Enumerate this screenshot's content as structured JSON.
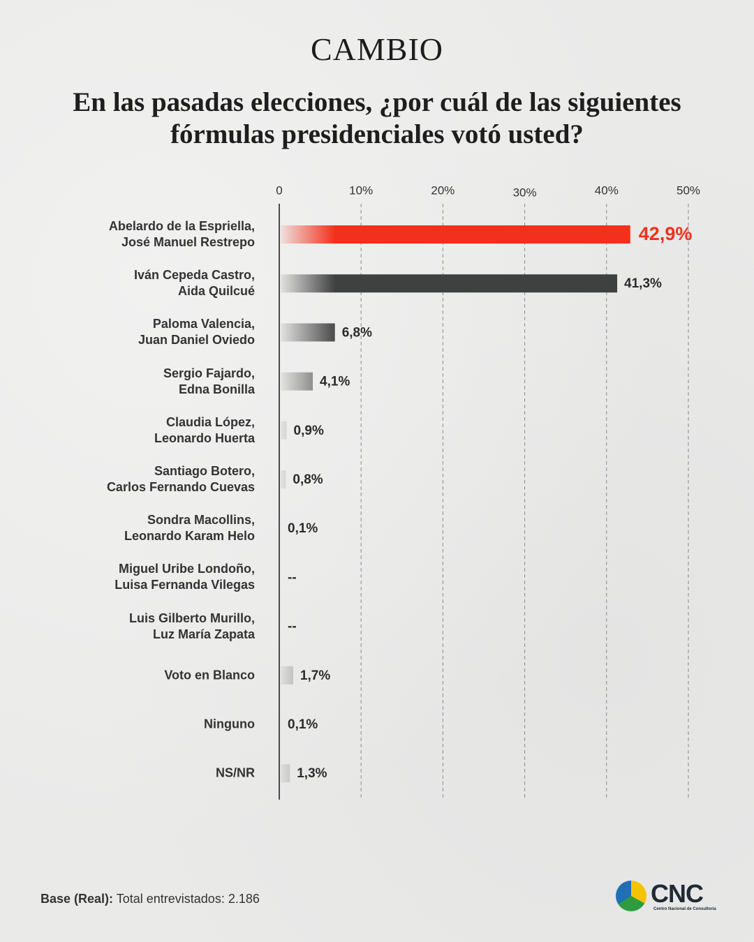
{
  "brand": "CAMBIO",
  "chart_data": {
    "type": "bar",
    "orientation": "horizontal",
    "title": "En las pasadas elecciones, ¿por cuál de las siguientes fórmulas presidenciales votó usted?",
    "categories": [
      "Abelardo de la Espriella,\nJosé Manuel Restrepo",
      "Iván Cepeda Castro,\nAida Quilcué",
      "Paloma Valencia,\nJuan Daniel Oviedo",
      "Sergio Fajardo,\nEdna Bonilla",
      "Claudia López,\nLeonardo Huerta",
      "Santiago Botero,\nCarlos Fernando Cuevas",
      "Sondra Macollins,\nLeonardo Karam Helo",
      "Miguel Uribe Londoño,\nLuisa Fernanda Vilegas",
      "Luis Gilberto Murillo,\nLuz María Zapata",
      "Voto en Blanco",
      "Ninguno",
      "NS/NR"
    ],
    "values": [
      42.9,
      41.3,
      6.8,
      4.1,
      0.9,
      0.8,
      0.1,
      null,
      null,
      1.7,
      0.1,
      1.3
    ],
    "value_labels": [
      "42,9%",
      "41,3%",
      "6,8%",
      "4,1%",
      "0,9%",
      "0,8%",
      "0,1%",
      "--",
      "--",
      "1,7%",
      "0,1%",
      "1,3%"
    ],
    "colors": [
      "#f2301b",
      "#3f4140",
      "#4a4a4a",
      "#555555",
      "#606060",
      "#606060",
      "#606060",
      "#606060",
      "#606060",
      "#606060",
      "#606060",
      "#606060"
    ],
    "xlim": [
      0,
      50
    ],
    "xticks": [
      0,
      {
        "value": 10,
        "label": "10%"
      },
      {
        "value": 20,
        "label": "20%"
      },
      {
        "value": 30,
        "label": "30%"
      },
      {
        "value": 40,
        "label": "40%"
      },
      {
        "value": 50,
        "label": "50%"
      }
    ],
    "grid": true
  },
  "footer": {
    "label": "Base (Real):",
    "text": "Total entrevistados: 2.186"
  },
  "logo": {
    "name": "CNC",
    "subtitle": "Centro Nacional de Consultoría"
  }
}
